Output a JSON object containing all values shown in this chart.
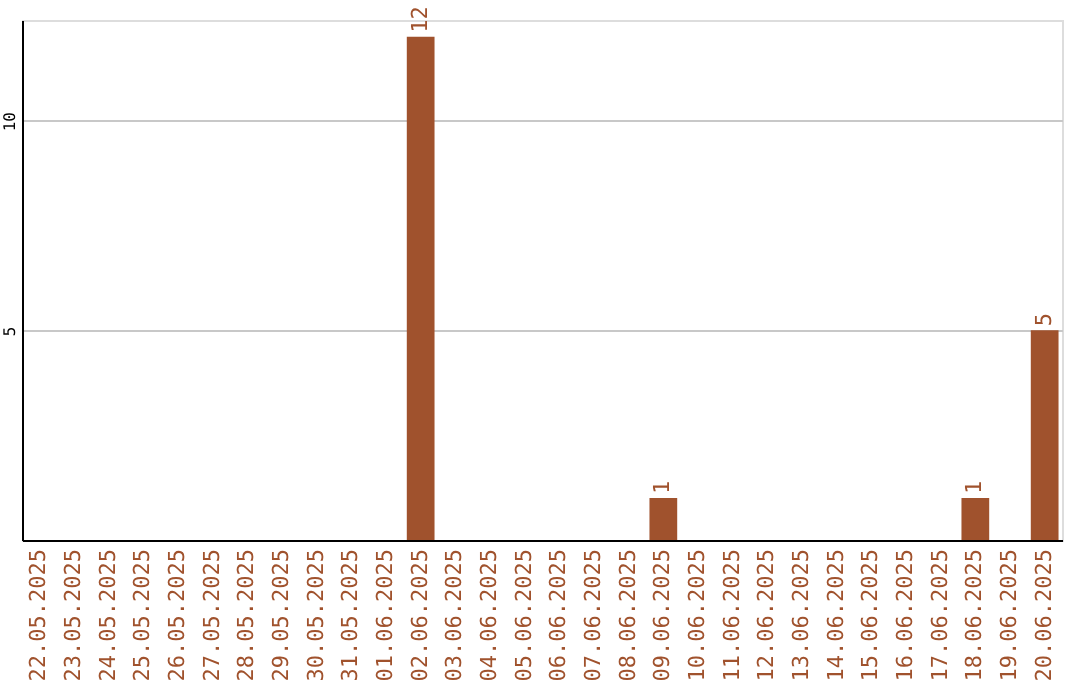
{
  "chart_data": {
    "type": "bar",
    "categories": [
      "22.05.2025",
      "23.05.2025",
      "24.05.2025",
      "25.05.2025",
      "26.05.2025",
      "27.05.2025",
      "28.05.2025",
      "29.05.2025",
      "30.05.2025",
      "31.05.2025",
      "01.06.2025",
      "02.06.2025",
      "03.06.2025",
      "04.06.2025",
      "05.06.2025",
      "06.06.2025",
      "07.06.2025",
      "08.06.2025",
      "09.06.2025",
      "10.06.2025",
      "11.06.2025",
      "12.06.2025",
      "13.06.2025",
      "14.06.2025",
      "15.06.2025",
      "16.06.2025",
      "17.06.2025",
      "18.06.2025",
      "19.06.2025",
      "20.06.2025"
    ],
    "values": [
      0,
      0,
      0,
      0,
      0,
      0,
      0,
      0,
      0,
      0,
      0,
      12,
      0,
      0,
      0,
      0,
      0,
      0,
      1,
      0,
      0,
      0,
      0,
      0,
      0,
      0,
      0,
      1,
      0,
      5
    ],
    "value_labels": [
      null,
      null,
      null,
      null,
      null,
      null,
      null,
      null,
      null,
      null,
      null,
      "12",
      null,
      null,
      null,
      null,
      null,
      null,
      "1",
      null,
      null,
      null,
      null,
      null,
      null,
      null,
      null,
      "1",
      null,
      "5"
    ],
    "color": "#a0522d",
    "ylim": [
      0,
      12.4
    ],
    "yticks": [
      5,
      10
    ],
    "grid": "y"
  }
}
